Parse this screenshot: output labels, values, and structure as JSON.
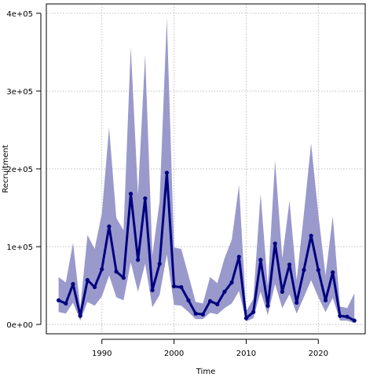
{
  "chart_data": {
    "type": "line",
    "title": "",
    "xlabel": "Time",
    "ylabel": "Recruitment",
    "xlim": [
      1982.3,
      2026.5
    ],
    "ylim": [
      -12000,
      412000
    ],
    "grid": true,
    "x_ticks": [
      {
        "value": 1990,
        "label": "1990"
      },
      {
        "value": 2000,
        "label": "2000"
      },
      {
        "value": 2010,
        "label": "2010"
      },
      {
        "value": 2020,
        "label": "2020"
      }
    ],
    "y_ticks": [
      {
        "value": 0,
        "label": "0e+00"
      },
      {
        "value": 100000,
        "label": "1e+05"
      },
      {
        "value": 200000,
        "label": "2e+05"
      },
      {
        "value": 300000,
        "label": "3e+05"
      },
      {
        "value": 400000,
        "label": "4e+05"
      }
    ],
    "colors": {
      "line": "#000080",
      "band": "#9999cc",
      "grid": "#c0c0c0",
      "axis": "#000000"
    },
    "series": [
      {
        "x": [
          1984,
          1985,
          1986,
          1987,
          1988,
          1989,
          1990,
          1991,
          1992,
          1993,
          1994,
          1995,
          1996,
          1997,
          1998,
          1999,
          2000,
          2001,
          2002,
          2003,
          2004,
          2005,
          2006,
          2007,
          2008,
          2009,
          2010,
          2011,
          2012,
          2013,
          2014,
          2015,
          2016,
          2017,
          2018,
          2019,
          2020,
          2021,
          2022,
          2023,
          2024,
          2025
        ],
        "values": [
          31000,
          27000,
          52000,
          11000,
          57000,
          48000,
          71000,
          126000,
          68000,
          60000,
          168000,
          83000,
          162000,
          44000,
          78000,
          195000,
          49000,
          48000,
          31000,
          14000,
          13000,
          30000,
          26000,
          42000,
          54000,
          87000,
          8000,
          16000,
          83000,
          24000,
          104000,
          42000,
          77000,
          28000,
          70000,
          114000,
          70000,
          31000,
          67000,
          11000,
          10000,
          5000
        ],
        "lower": [
          16000,
          14000,
          28000,
          5000,
          29000,
          24000,
          36000,
          63000,
          35000,
          31000,
          80000,
          42000,
          78000,
          22000,
          38000,
          90000,
          25000,
          24000,
          16000,
          7000,
          7000,
          15000,
          13000,
          21000,
          27000,
          43000,
          4000,
          8000,
          42000,
          12000,
          52000,
          21000,
          39000,
          14000,
          35000,
          57000,
          35000,
          16000,
          34000,
          5000,
          5000,
          2000
        ],
        "upper": [
          61000,
          54000,
          105000,
          22000,
          115000,
          97000,
          143000,
          253000,
          137000,
          121000,
          357000,
          167000,
          347000,
          89000,
          158000,
          394000,
          99000,
          97000,
          63000,
          29000,
          27000,
          61000,
          53000,
          85000,
          109000,
          179000,
          17000,
          33000,
          168000,
          49000,
          211000,
          85000,
          159000,
          57000,
          142000,
          233000,
          142000,
          63000,
          139000,
          23000,
          21000,
          40000
        ]
      }
    ]
  }
}
